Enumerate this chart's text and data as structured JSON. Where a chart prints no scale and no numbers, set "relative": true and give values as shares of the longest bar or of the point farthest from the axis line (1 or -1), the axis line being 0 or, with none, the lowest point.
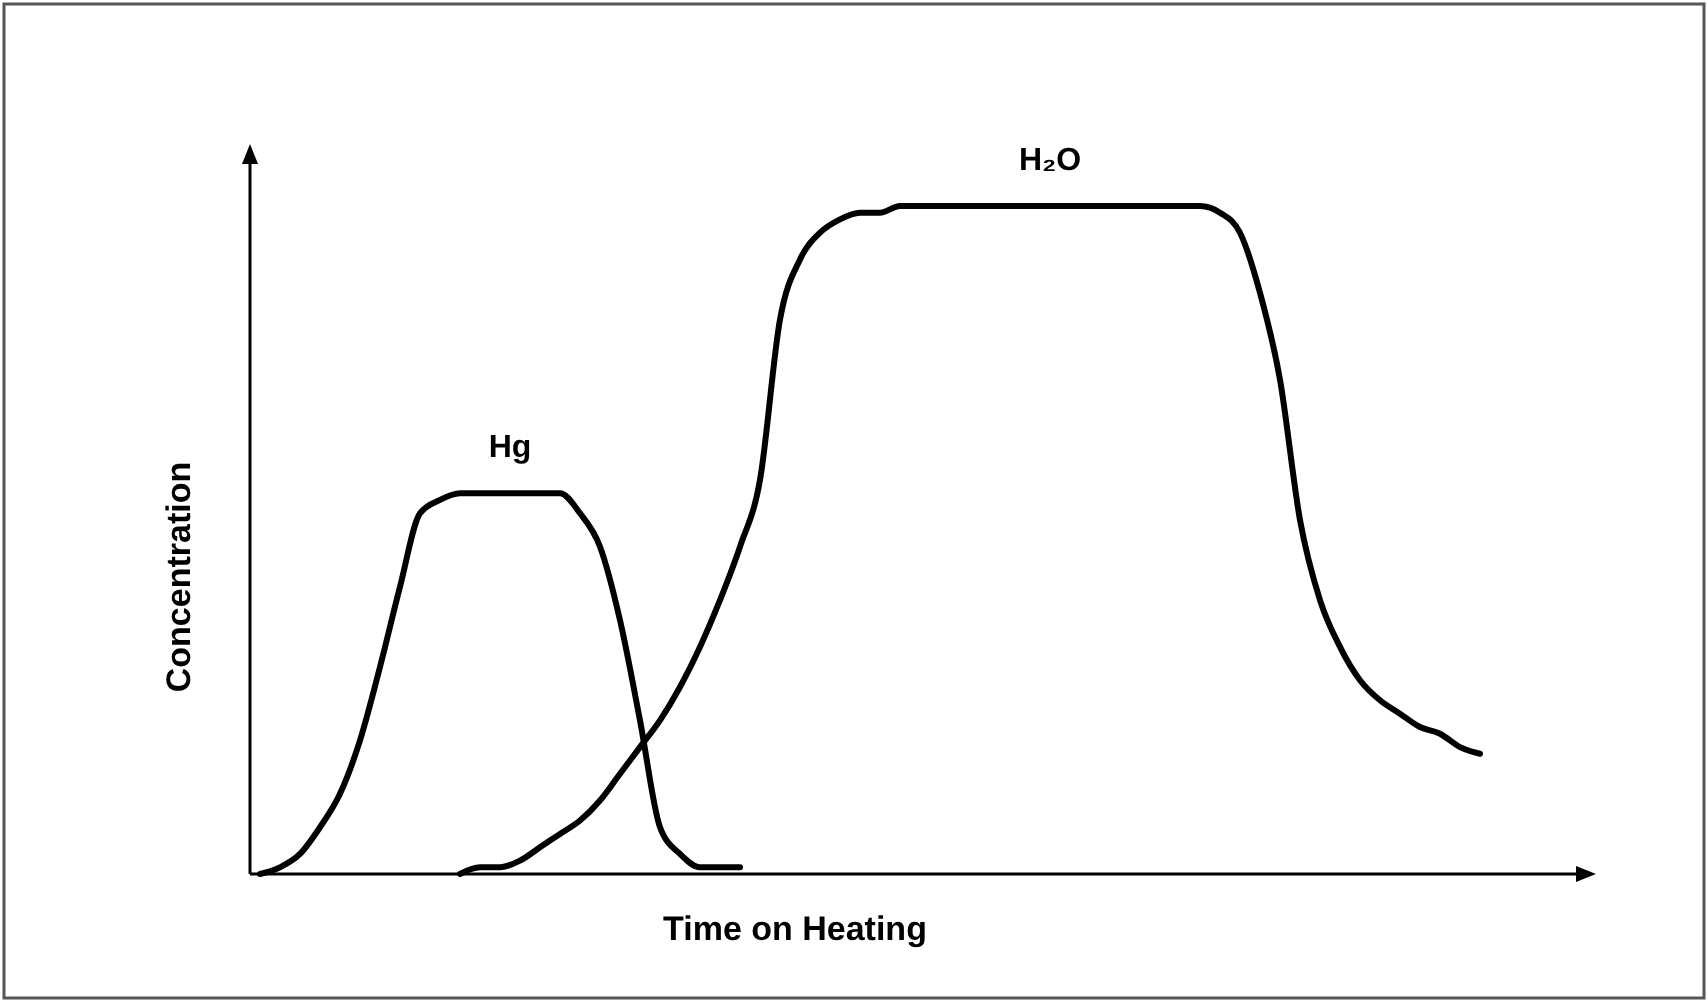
{
  "chart_data": {
    "type": "line",
    "relative": true,
    "xlabel": "Time on Heating",
    "ylabel": "Concentration",
    "categories": [
      null,
      null,
      null,
      null,
      null,
      null,
      null,
      null,
      null,
      null,
      null,
      null,
      null,
      null,
      null,
      null,
      null,
      null,
      null,
      null,
      null,
      null,
      null,
      null,
      null,
      null,
      null,
      null,
      null,
      null,
      null,
      null,
      null,
      null,
      null,
      null,
      null,
      null,
      null,
      null,
      null,
      null,
      null,
      null,
      null,
      null,
      null,
      null,
      null,
      null,
      null,
      null,
      null,
      null,
      null,
      null,
      null,
      null,
      null,
      null,
      null,
      null
    ],
    "series": [
      {
        "name": "Hg",
        "color": "#000000",
        "values": [
          0.0,
          0.01,
          0.03,
          0.07,
          0.12,
          0.2,
          0.31,
          0.43,
          0.54,
          0.56,
          0.57,
          0.57,
          0.57,
          0.57,
          0.57,
          0.57,
          0.54,
          0.49,
          0.38,
          0.23,
          0.07,
          0.03,
          0.01,
          0.01,
          0.01,
          null,
          null,
          null,
          null,
          null,
          null,
          null,
          null,
          null,
          null,
          null,
          null,
          null,
          null,
          null,
          null,
          null,
          null,
          null,
          null,
          null,
          null,
          null,
          null,
          null,
          null,
          null,
          null,
          null,
          null,
          null,
          null,
          null,
          null,
          null,
          null,
          null
        ]
      },
      {
        "name": "H₂O",
        "color": "#000000",
        "values": [
          null,
          null,
          null,
          null,
          null,
          null,
          null,
          null,
          null,
          null,
          0.0,
          0.01,
          0.01,
          0.02,
          0.04,
          0.06,
          0.08,
          0.11,
          0.15,
          0.19,
          0.23,
          0.28,
          0.34,
          0.41,
          0.49,
          0.59,
          0.83,
          0.92,
          0.96,
          0.98,
          0.99,
          0.99,
          1.0,
          1.0,
          1.0,
          1.0,
          1.0,
          1.0,
          1.0,
          1.0,
          1.0,
          1.0,
          1.0,
          1.0,
          1.0,
          1.0,
          1.0,
          1.0,
          0.99,
          0.96,
          0.87,
          0.74,
          0.53,
          0.41,
          0.34,
          0.29,
          0.26,
          0.24,
          0.22,
          0.21,
          0.19,
          0.18
        ]
      }
    ],
    "marker": "none",
    "line_style": "solid"
  }
}
